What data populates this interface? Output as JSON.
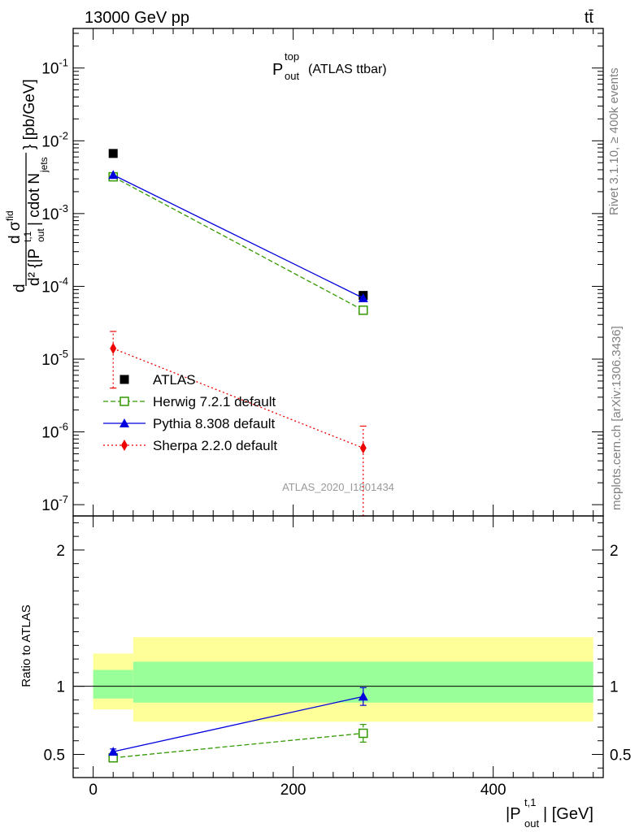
{
  "header": {
    "energy": "13000 GeV pp",
    "process": "tt̄"
  },
  "title": {
    "main": "P",
    "sup": "top",
    "sub": "out",
    "rest": "(ATLAS ttbar)"
  },
  "side": {
    "rivet": "Rivet 3.1.10, ≥ 400k events",
    "mcplots": "mcplots.cern.ch [arXiv:1306.3436]"
  },
  "watermark": "ATLAS_2020_I1801434",
  "ylabel_main": "d²σ / d{|Pout|} d N_jets [pb/GeV]",
  "ylabel_ratio": "Ratio to ATLAS",
  "xlabel": "|P_out^t,1| [GeV]",
  "chart_data": [
    {
      "type": "scatter",
      "panel": "main",
      "yscale": "log",
      "xlim": [
        -20,
        510
      ],
      "ylim": [
        7e-08,
        0.35
      ],
      "yticks": [
        {
          "value": 1e-07,
          "label": "10^-7"
        },
        {
          "value": 1e-06,
          "label": "10^-6"
        },
        {
          "value": 1e-05,
          "label": "10^-5"
        },
        {
          "value": 0.0001,
          "label": "10^-4"
        },
        {
          "value": 0.001,
          "label": "10^-3"
        },
        {
          "value": 0.01,
          "label": "10^-2"
        },
        {
          "value": 0.1,
          "label": "10^-1"
        }
      ],
      "series": [
        {
          "name": "ATLAS",
          "color": "#000000",
          "marker": "square-filled",
          "line": "none",
          "x": [
            20,
            270
          ],
          "y": [
            0.0067,
            7.5e-05
          ]
        },
        {
          "name": "Herwig 7.2.1 default",
          "color": "#339900",
          "marker": "square-open",
          "line": "dashed",
          "x": [
            20,
            270
          ],
          "y": [
            0.0032,
            4.7e-05
          ]
        },
        {
          "name": "Pythia 8.308 default",
          "color": "#0000dd",
          "marker": "triangle",
          "line": "solid",
          "x": [
            20,
            270
          ],
          "y": [
            0.0034,
            6.9e-05
          ]
        },
        {
          "name": "Sherpa 2.2.0 default",
          "color": "#ee0000",
          "marker": "diamond",
          "line": "dotted",
          "x": [
            20,
            270
          ],
          "y": [
            1.4e-05,
            6e-07
          ],
          "err_low": [
            4e-06,
            7e-08
          ],
          "err_high": [
            2.4e-05,
            1.2e-06
          ]
        }
      ],
      "legend_position": "lower-left"
    },
    {
      "type": "scatter",
      "panel": "ratio",
      "xlim": [
        -20,
        510
      ],
      "ylim": [
        0.33,
        2.25
      ],
      "xticks": [
        0,
        200,
        400
      ],
      "yticks": [
        0.5,
        1,
        2
      ],
      "bands": [
        {
          "x0": 0,
          "x1": 40,
          "yellow": [
            0.83,
            1.24
          ],
          "green": [
            0.91,
            1.12
          ]
        },
        {
          "x0": 40,
          "x1": 500,
          "yellow": [
            0.74,
            1.36
          ],
          "green": [
            0.88,
            1.18
          ]
        }
      ],
      "series": [
        {
          "name": "Herwig 7.2.1 default",
          "color": "#339900",
          "marker": "square-open",
          "line": "dashed",
          "x": [
            20,
            270
          ],
          "y": [
            0.475,
            0.655
          ],
          "err_low": [
            0.46,
            0.59
          ],
          "err_high": [
            0.49,
            0.72
          ]
        },
        {
          "name": "Pythia 8.308 default",
          "color": "#0000dd",
          "marker": "triangle",
          "line": "solid",
          "x": [
            20,
            270
          ],
          "y": [
            0.52,
            0.925
          ],
          "err_low": [
            0.5,
            0.86
          ],
          "err_high": [
            0.54,
            0.99
          ]
        }
      ]
    }
  ]
}
